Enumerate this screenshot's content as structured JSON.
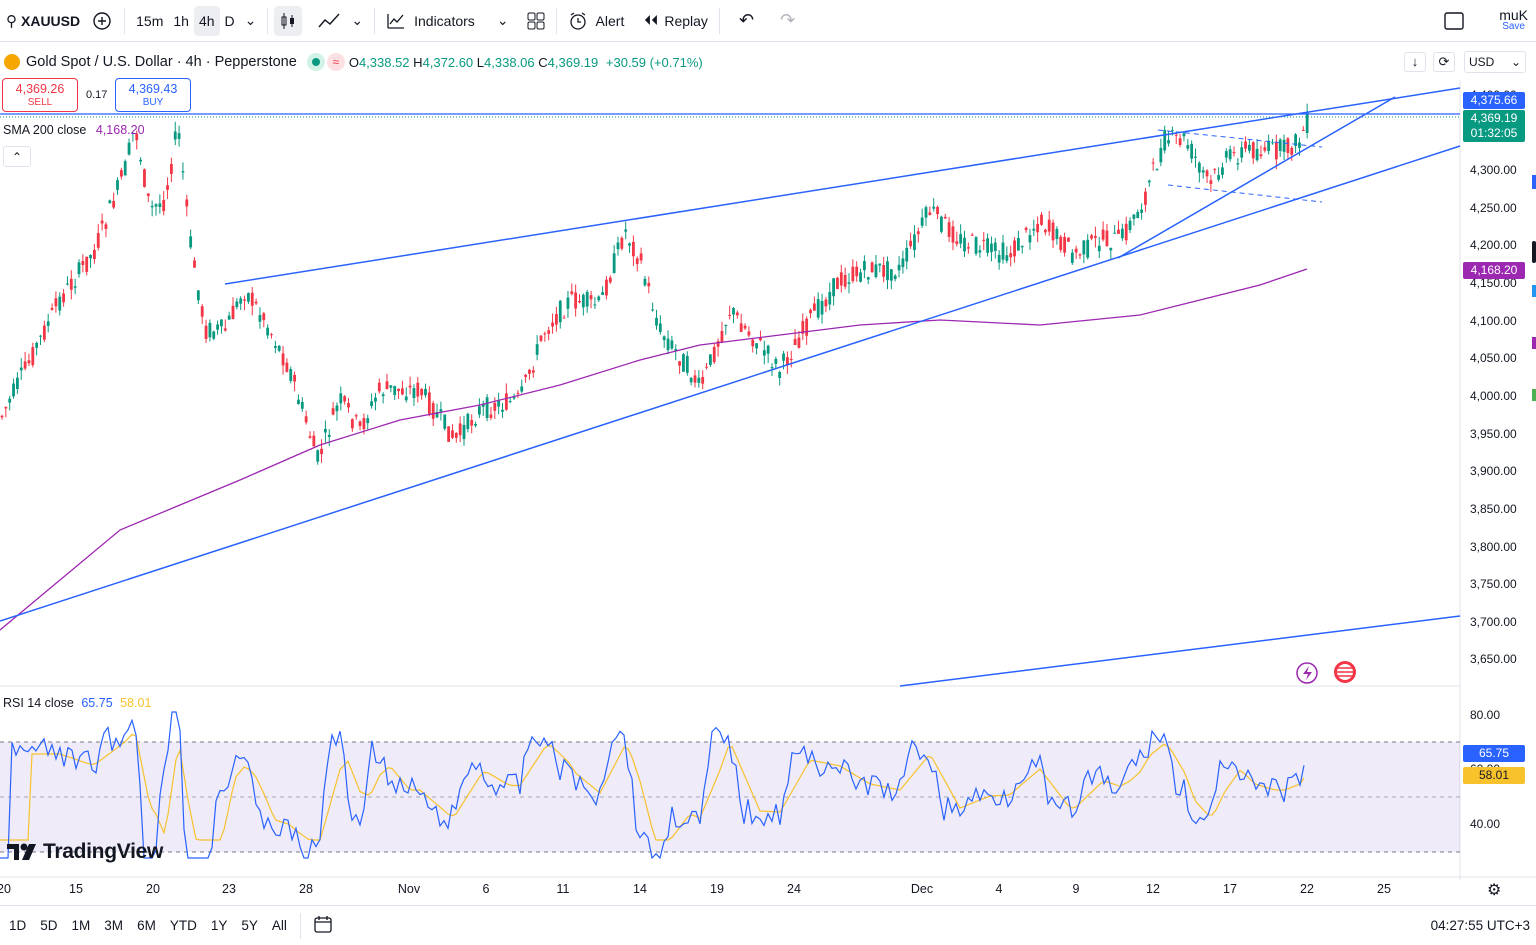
{
  "toolbar": {
    "symbol": "XAUUSD",
    "intervals": [
      "15m",
      "1h",
      "4h",
      "D"
    ],
    "active_interval": "4h",
    "indicators_label": "Indicators",
    "alert_label": "Alert",
    "replay_label": "Replay",
    "user": "muK",
    "save_label": "Save"
  },
  "legend": {
    "title": "Gold Spot / U.S. Dollar · 4h · Pepperstone",
    "open": "4,338.52",
    "high": "4,372.60",
    "low": "4,338.06",
    "close": "4,369.19",
    "change": "+30.59 (+0.71%)",
    "sell_price": "4,369.26",
    "sell_label": "SELL",
    "spread": "0.17",
    "buy_price": "4,369.43",
    "buy_label": "BUY",
    "sma_label": "SMA 200 close",
    "sma_value": "4,168.20",
    "currency": "USD"
  },
  "price_axis": {
    "ticks": [
      "4,300.00",
      "4,250.00",
      "4,200.00",
      "4,150.00",
      "4,100.00",
      "4,050.00",
      "4,000.00",
      "3,950.00",
      "3,900.00",
      "3,850.00",
      "3,800.00",
      "3,750.00",
      "3,700.00",
      "3,650.00"
    ],
    "label_blue": "4,375.66",
    "label_green_price": "4,369.19",
    "label_green_timer": "01:32:05",
    "label_sma": "4,168.20",
    "tick_partial": "4,400.00"
  },
  "rsi": {
    "label": "RSI 14 close",
    "rsi_value": "65.75",
    "ma_value": "58.01",
    "ticks": [
      "80.00",
      "40.00"
    ],
    "tick_partial": "60.00"
  },
  "time_axis": [
    "20",
    "15",
    "20",
    "23",
    "28",
    "Nov",
    "6",
    "11",
    "14",
    "19",
    "24",
    "Dec",
    "4",
    "9",
    "12",
    "17",
    "22",
    "25"
  ],
  "bottom": {
    "ranges": [
      "1D",
      "5D",
      "1M",
      "3M",
      "6M",
      "YTD",
      "1Y",
      "5Y",
      "All"
    ],
    "clock": "04:27:55 UTC+3"
  },
  "logo": "TradingView",
  "colors": {
    "up": "#089981",
    "down": "#f23645",
    "trendline": "#2962ff",
    "sma": "#9c27b0",
    "rsi": "#2962ff",
    "rsi_ma": "#f7c22c"
  }
}
